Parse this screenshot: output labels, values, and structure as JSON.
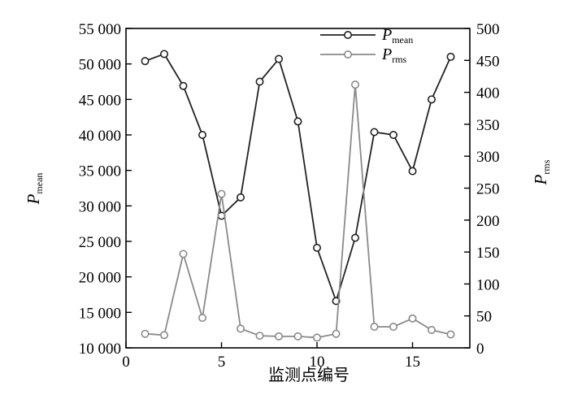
{
  "chart_data": {
    "type": "line",
    "title": "",
    "xlabel": "监测点编号",
    "ylabel_left": {
      "main": "P",
      "sub": "mean"
    },
    "ylabel_right": {
      "main": "P",
      "sub": "rms"
    },
    "xlim": [
      0,
      18
    ],
    "ylim_left": [
      10000,
      55000
    ],
    "ylim_right": [
      0,
      500
    ],
    "x_ticks": [
      0,
      5,
      10,
      15
    ],
    "y_left_ticks": [
      10000,
      15000,
      20000,
      25000,
      30000,
      35000,
      40000,
      45000,
      50000,
      55000
    ],
    "y_left_tick_labels": [
      "10 000",
      "15 000",
      "20 000",
      "25 000",
      "30 000",
      "35 000",
      "40 000",
      "45 000",
      "50 000",
      "55 000"
    ],
    "y_right_ticks": [
      0,
      50,
      100,
      150,
      200,
      250,
      300,
      350,
      400,
      450,
      500
    ],
    "grid": false,
    "legend_position": "top-right",
    "series": [
      {
        "name_main": "P",
        "name_sub": "mean",
        "axis": "left",
        "color": "#222222",
        "x": [
          1,
          2,
          3,
          4,
          5,
          6,
          7,
          8,
          9,
          10,
          11,
          12,
          13,
          14,
          15,
          16,
          17
        ],
        "values": [
          50400,
          51400,
          46900,
          40000,
          28600,
          31200,
          47500,
          50700,
          41900,
          24100,
          16600,
          25500,
          40400,
          40000,
          34900,
          45000,
          51000
        ]
      },
      {
        "name_main": "P",
        "name_sub": "rms",
        "axis": "right",
        "color": "#8a8a8a",
        "x": [
          1,
          2,
          3,
          4,
          5,
          6,
          7,
          8,
          9,
          10,
          11,
          12,
          13,
          14,
          15,
          16,
          17
        ],
        "values": [
          22,
          20,
          147,
          47,
          241,
          30,
          19,
          18,
          18,
          16,
          22,
          412,
          33,
          33,
          46,
          28,
          21
        ]
      }
    ]
  }
}
